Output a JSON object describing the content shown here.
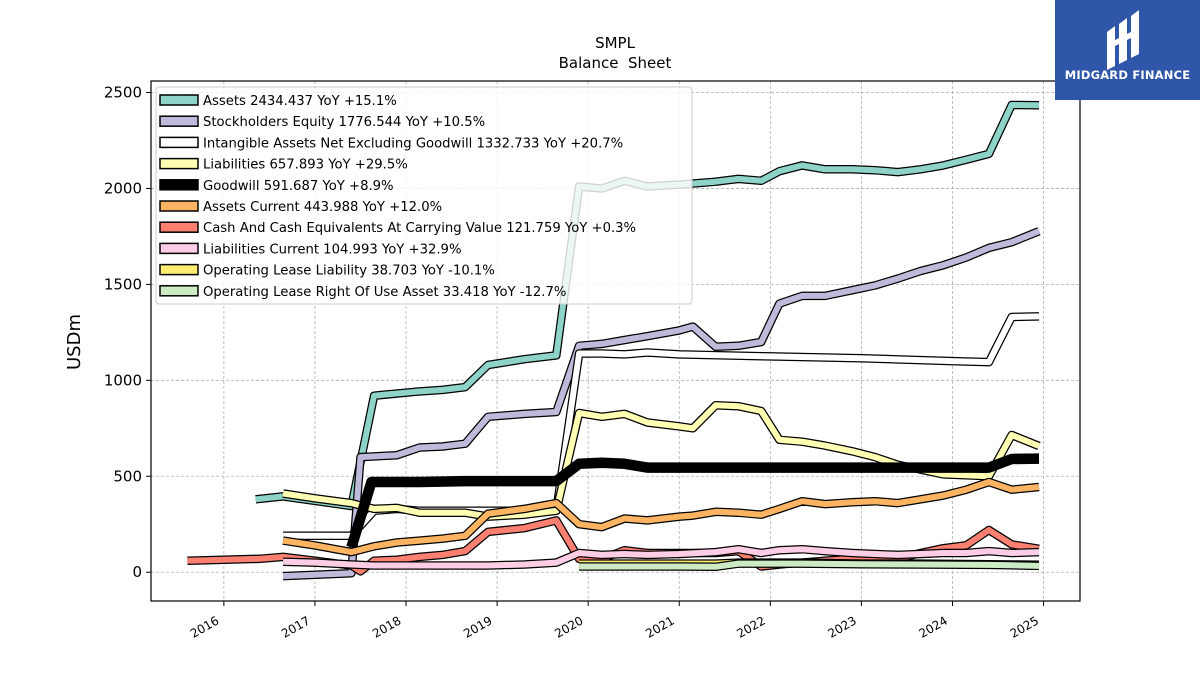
{
  "chart_data": {
    "type": "line",
    "title": "SMPL",
    "subtitle": "Balance  Sheet",
    "ylabel": "USDm",
    "xlabel": "",
    "xlim": [
      2015.2,
      2025.4
    ],
    "ylim": [
      -150,
      2560
    ],
    "x_ticks": [
      2016,
      2017,
      2018,
      2019,
      2020,
      2021,
      2022,
      2023,
      2024,
      2025
    ],
    "y_ticks": [
      0,
      500,
      1000,
      1500,
      2000,
      2500
    ],
    "grid": true,
    "legend_position": "top-left",
    "series": [
      {
        "name": "Assets",
        "legend": "Assets  2434.437 YoY +15.1%",
        "color": "#8dd3c7",
        "width": 6,
        "points": [
          [
            2016.35,
            380
          ],
          [
            2016.65,
            395
          ],
          [
            2017.4,
            345
          ],
          [
            2017.65,
            920
          ],
          [
            2018.1,
            940
          ],
          [
            2018.4,
            950
          ],
          [
            2018.65,
            965
          ],
          [
            2018.9,
            1080
          ],
          [
            2019.3,
            1110
          ],
          [
            2019.65,
            1130
          ],
          [
            2019.9,
            2010
          ],
          [
            2020.15,
            2000
          ],
          [
            2020.4,
            2040
          ],
          [
            2020.65,
            2010
          ],
          [
            2021.0,
            2020
          ],
          [
            2021.4,
            2035
          ],
          [
            2021.65,
            2050
          ],
          [
            2021.9,
            2040
          ],
          [
            2022.1,
            2090
          ],
          [
            2022.35,
            2120
          ],
          [
            2022.6,
            2100
          ],
          [
            2022.9,
            2100
          ],
          [
            2023.15,
            2095
          ],
          [
            2023.4,
            2085
          ],
          [
            2023.65,
            2100
          ],
          [
            2023.9,
            2120
          ],
          [
            2024.15,
            2150
          ],
          [
            2024.4,
            2180
          ],
          [
            2024.65,
            2435
          ],
          [
            2024.95,
            2434
          ]
        ]
      },
      {
        "name": "Stockholders Equity",
        "legend": "Stockholders Equity  1776.544 YoY +10.5%",
        "color": "#bebada",
        "width": 6,
        "points": [
          [
            2016.65,
            -20
          ],
          [
            2017.4,
            -5
          ],
          [
            2017.5,
            600
          ],
          [
            2017.9,
            610
          ],
          [
            2018.15,
            650
          ],
          [
            2018.4,
            655
          ],
          [
            2018.65,
            670
          ],
          [
            2018.9,
            810
          ],
          [
            2019.3,
            825
          ],
          [
            2019.65,
            835
          ],
          [
            2019.9,
            1180
          ],
          [
            2020.15,
            1190
          ],
          [
            2020.4,
            1210
          ],
          [
            2020.65,
            1230
          ],
          [
            2021.0,
            1260
          ],
          [
            2021.15,
            1280
          ],
          [
            2021.4,
            1175
          ],
          [
            2021.65,
            1180
          ],
          [
            2021.9,
            1200
          ],
          [
            2022.1,
            1400
          ],
          [
            2022.35,
            1440
          ],
          [
            2022.6,
            1440
          ],
          [
            2022.9,
            1470
          ],
          [
            2023.15,
            1495
          ],
          [
            2023.4,
            1530
          ],
          [
            2023.65,
            1570
          ],
          [
            2023.9,
            1600
          ],
          [
            2024.15,
            1640
          ],
          [
            2024.4,
            1690
          ],
          [
            2024.65,
            1720
          ],
          [
            2024.95,
            1777
          ]
        ]
      },
      {
        "name": "Intangible Assets Net Excluding Goodwill",
        "legend": "Intangible Assets Net Excluding Goodwill  1332.733 YoY +20.7%",
        "color": "#ffffff",
        "width": 6,
        "points": [
          [
            2016.65,
            190
          ],
          [
            2017.4,
            190
          ],
          [
            2017.65,
            320
          ],
          [
            2017.9,
            330
          ],
          [
            2018.15,
            320
          ],
          [
            2018.4,
            320
          ],
          [
            2018.65,
            320
          ],
          [
            2018.9,
            320
          ],
          [
            2019.3,
            320
          ],
          [
            2019.65,
            320
          ],
          [
            2019.9,
            1140
          ],
          [
            2020.15,
            1140
          ],
          [
            2020.4,
            1135
          ],
          [
            2020.65,
            1145
          ],
          [
            2021.0,
            1135
          ],
          [
            2022.0,
            1125
          ],
          [
            2023.0,
            1115
          ],
          [
            2024.0,
            1100
          ],
          [
            2024.4,
            1095
          ],
          [
            2024.65,
            1330
          ],
          [
            2024.95,
            1333
          ]
        ]
      },
      {
        "name": "Liabilities",
        "legend": "Liabilities  657.893 YoY +29.5%",
        "color": "#ffffb3",
        "width": 6,
        "points": [
          [
            2016.65,
            410
          ],
          [
            2017.0,
            385
          ],
          [
            2017.4,
            360
          ],
          [
            2017.65,
            330
          ],
          [
            2017.9,
            335
          ],
          [
            2018.15,
            310
          ],
          [
            2018.4,
            310
          ],
          [
            2018.65,
            310
          ],
          [
            2018.9,
            290
          ],
          [
            2019.3,
            300
          ],
          [
            2019.65,
            320
          ],
          [
            2019.9,
            830
          ],
          [
            2020.15,
            810
          ],
          [
            2020.4,
            825
          ],
          [
            2020.65,
            780
          ],
          [
            2021.0,
            760
          ],
          [
            2021.15,
            750
          ],
          [
            2021.4,
            870
          ],
          [
            2021.65,
            865
          ],
          [
            2021.9,
            840
          ],
          [
            2022.1,
            690
          ],
          [
            2022.35,
            680
          ],
          [
            2022.6,
            660
          ],
          [
            2022.9,
            630
          ],
          [
            2023.15,
            600
          ],
          [
            2023.4,
            560
          ],
          [
            2023.65,
            535
          ],
          [
            2023.9,
            510
          ],
          [
            2024.15,
            505
          ],
          [
            2024.4,
            500
          ],
          [
            2024.65,
            715
          ],
          [
            2024.95,
            658
          ]
        ]
      },
      {
        "name": "Goodwill",
        "legend": "Goodwill  591.687 YoY +8.9%",
        "color": "#000000",
        "width": 8,
        "points": [
          [
            2017.4,
            130
          ],
          [
            2017.62,
            470
          ],
          [
            2017.9,
            470
          ],
          [
            2018.15,
            470
          ],
          [
            2018.65,
            475
          ],
          [
            2019.0,
            475
          ],
          [
            2019.4,
            475
          ],
          [
            2019.65,
            475
          ],
          [
            2019.9,
            565
          ],
          [
            2020.15,
            570
          ],
          [
            2020.4,
            565
          ],
          [
            2020.65,
            545
          ],
          [
            2021.0,
            545
          ],
          [
            2022.0,
            545
          ],
          [
            2023.0,
            545
          ],
          [
            2024.0,
            545
          ],
          [
            2024.4,
            545
          ],
          [
            2024.65,
            590
          ],
          [
            2024.95,
            592
          ]
        ]
      },
      {
        "name": "Assets Current",
        "legend": "Assets Current  443.988 YoY +12.0%",
        "color": "#fdb462",
        "width": 6,
        "points": [
          [
            2016.65,
            165
          ],
          [
            2017.0,
            140
          ],
          [
            2017.4,
            105
          ],
          [
            2017.65,
            135
          ],
          [
            2017.9,
            155
          ],
          [
            2018.15,
            165
          ],
          [
            2018.4,
            175
          ],
          [
            2018.65,
            190
          ],
          [
            2018.9,
            305
          ],
          [
            2019.3,
            330
          ],
          [
            2019.65,
            360
          ],
          [
            2019.9,
            250
          ],
          [
            2020.15,
            235
          ],
          [
            2020.4,
            280
          ],
          [
            2020.65,
            270
          ],
          [
            2021.0,
            290
          ],
          [
            2021.15,
            295
          ],
          [
            2021.4,
            315
          ],
          [
            2021.65,
            310
          ],
          [
            2021.9,
            300
          ],
          [
            2022.1,
            330
          ],
          [
            2022.35,
            370
          ],
          [
            2022.6,
            355
          ],
          [
            2022.9,
            365
          ],
          [
            2023.15,
            370
          ],
          [
            2023.4,
            360
          ],
          [
            2023.65,
            380
          ],
          [
            2023.9,
            400
          ],
          [
            2024.15,
            430
          ],
          [
            2024.4,
            470
          ],
          [
            2024.65,
            430
          ],
          [
            2024.95,
            444
          ]
        ]
      },
      {
        "name": "Cash And Cash Equivalents At Carrying Value",
        "legend": "Cash And Cash Equivalents At Carrying Value  121.759 YoY +0.3%",
        "color": "#fb8072",
        "width": 6,
        "points": [
          [
            2015.6,
            60
          ],
          [
            2016.0,
            65
          ],
          [
            2016.4,
            70
          ],
          [
            2016.65,
            80
          ],
          [
            2017.0,
            60
          ],
          [
            2017.4,
            35
          ],
          [
            2017.5,
            5
          ],
          [
            2017.65,
            60
          ],
          [
            2017.9,
            65
          ],
          [
            2018.15,
            80
          ],
          [
            2018.4,
            90
          ],
          [
            2018.65,
            110
          ],
          [
            2018.9,
            210
          ],
          [
            2019.3,
            230
          ],
          [
            2019.65,
            270
          ],
          [
            2019.9,
            70
          ],
          [
            2020.15,
            70
          ],
          [
            2020.4,
            115
          ],
          [
            2020.65,
            100
          ],
          [
            2021.0,
            100
          ],
          [
            2021.4,
            100
          ],
          [
            2021.65,
            110
          ],
          [
            2021.9,
            30
          ],
          [
            2022.1,
            40
          ],
          [
            2022.35,
            50
          ],
          [
            2022.6,
            60
          ],
          [
            2022.9,
            70
          ],
          [
            2023.15,
            70
          ],
          [
            2023.4,
            70
          ],
          [
            2023.65,
            100
          ],
          [
            2023.9,
            125
          ],
          [
            2024.15,
            140
          ],
          [
            2024.4,
            220
          ],
          [
            2024.65,
            145
          ],
          [
            2024.95,
            122
          ]
        ]
      },
      {
        "name": "Liabilities Current",
        "legend": "Liabilities Current  104.993 YoY +32.9%",
        "color": "#fccde5",
        "width": 6,
        "points": [
          [
            2016.65,
            55
          ],
          [
            2017.0,
            50
          ],
          [
            2017.4,
            40
          ],
          [
            2017.65,
            35
          ],
          [
            2017.9,
            35
          ],
          [
            2018.15,
            35
          ],
          [
            2018.4,
            35
          ],
          [
            2018.65,
            35
          ],
          [
            2018.9,
            35
          ],
          [
            2019.3,
            40
          ],
          [
            2019.65,
            50
          ],
          [
            2019.9,
            100
          ],
          [
            2020.15,
            90
          ],
          [
            2020.4,
            95
          ],
          [
            2020.65,
            90
          ],
          [
            2021.0,
            95
          ],
          [
            2021.4,
            105
          ],
          [
            2021.65,
            120
          ],
          [
            2021.9,
            100
          ],
          [
            2022.1,
            115
          ],
          [
            2022.35,
            120
          ],
          [
            2022.6,
            110
          ],
          [
            2022.9,
            100
          ],
          [
            2023.15,
            95
          ],
          [
            2023.4,
            90
          ],
          [
            2023.65,
            95
          ],
          [
            2023.9,
            100
          ],
          [
            2024.15,
            100
          ],
          [
            2024.4,
            110
          ],
          [
            2024.65,
            100
          ],
          [
            2024.95,
            105
          ]
        ]
      },
      {
        "name": "Operating Lease Liability",
        "legend": "Operating Lease Liability  38.703 YoY -10.1%",
        "color": "#ffed6f",
        "width": 6,
        "points": [
          [
            2019.9,
            45
          ],
          [
            2020.65,
            45
          ],
          [
            2021.0,
            45
          ],
          [
            2021.4,
            45
          ],
          [
            2021.65,
            50
          ],
          [
            2021.9,
            50
          ],
          [
            2022.35,
            50
          ],
          [
            2023.0,
            45
          ],
          [
            2023.65,
            45
          ],
          [
            2024.4,
            42
          ],
          [
            2024.65,
            40
          ],
          [
            2024.95,
            39
          ]
        ]
      },
      {
        "name": "Operating Lease Right Of Use Asset",
        "legend": "Operating Lease Right Of Use Asset  33.418 YoY -12.7%",
        "color": "#ccebc5",
        "width": 6,
        "points": [
          [
            2019.9,
            30
          ],
          [
            2020.65,
            30
          ],
          [
            2021.0,
            30
          ],
          [
            2021.4,
            28
          ],
          [
            2021.65,
            45
          ],
          [
            2021.9,
            45
          ],
          [
            2022.35,
            45
          ],
          [
            2023.0,
            42
          ],
          [
            2023.65,
            40
          ],
          [
            2024.4,
            38
          ],
          [
            2024.65,
            36
          ],
          [
            2024.95,
            33
          ]
        ]
      }
    ]
  },
  "logo": {
    "text": "MIDGARD FINANCE",
    "color": "#2f56a8"
  }
}
